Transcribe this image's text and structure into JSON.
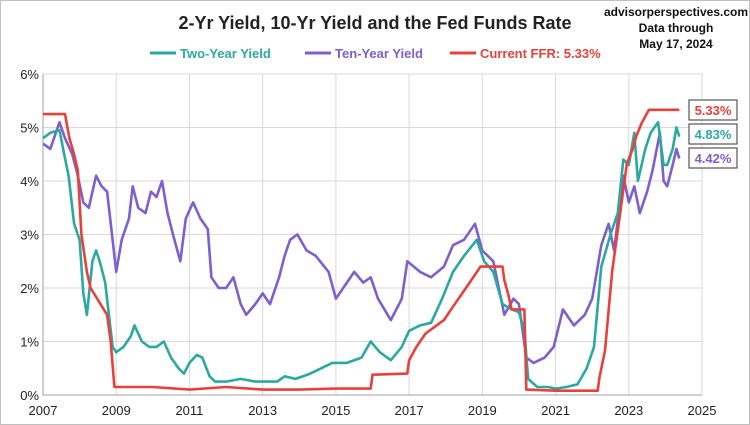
{
  "chart_data": {
    "type": "line",
    "title": "2-Yr Yield, 10-Yr Yield and the Fed Funds Rate",
    "source": "advisorperspectives.com",
    "data_through_line1": "Data through",
    "data_through_line2": "May 17, 2024",
    "xlabel": "",
    "ylabel": "",
    "xlim": [
      2007,
      2025
    ],
    "ylim": [
      0,
      6
    ],
    "x_ticks": [
      "2007",
      "2009",
      "2011",
      "2013",
      "2015",
      "2017",
      "2019",
      "2021",
      "2023",
      "2025"
    ],
    "y_ticks": [
      "0%",
      "1%",
      "2%",
      "3%",
      "4%",
      "5%",
      "6%"
    ],
    "grid": true,
    "legend": "top",
    "colors": {
      "two_year": "#2aa9a1",
      "ten_year": "#7d5fcf",
      "ffr": "#e8413c",
      "axis": "#a0a0a0",
      "grid": "#d9d9d9"
    },
    "series": [
      {
        "name": "Two-Year Yield",
        "key": "two_year",
        "end_label": "4.83%",
        "points": [
          [
            2007.0,
            4.8
          ],
          [
            2007.2,
            4.9
          ],
          [
            2007.45,
            4.95
          ],
          [
            2007.55,
            4.6
          ],
          [
            2007.7,
            4.1
          ],
          [
            2007.85,
            3.2
          ],
          [
            2008.0,
            2.9
          ],
          [
            2008.1,
            1.9
          ],
          [
            2008.2,
            1.5
          ],
          [
            2008.35,
            2.5
          ],
          [
            2008.45,
            2.7
          ],
          [
            2008.55,
            2.5
          ],
          [
            2008.7,
            2.1
          ],
          [
            2008.8,
            1.5
          ],
          [
            2008.9,
            0.9
          ],
          [
            2009.0,
            0.8
          ],
          [
            2009.2,
            0.9
          ],
          [
            2009.4,
            1.1
          ],
          [
            2009.5,
            1.3
          ],
          [
            2009.7,
            1.0
          ],
          [
            2009.9,
            0.9
          ],
          [
            2010.1,
            0.9
          ],
          [
            2010.3,
            1.0
          ],
          [
            2010.5,
            0.7
          ],
          [
            2010.7,
            0.5
          ],
          [
            2010.85,
            0.4
          ],
          [
            2011.0,
            0.6
          ],
          [
            2011.2,
            0.75
          ],
          [
            2011.35,
            0.7
          ],
          [
            2011.55,
            0.35
          ],
          [
            2011.7,
            0.25
          ],
          [
            2012.0,
            0.25
          ],
          [
            2012.4,
            0.3
          ],
          [
            2012.8,
            0.25
          ],
          [
            2013.0,
            0.25
          ],
          [
            2013.4,
            0.25
          ],
          [
            2013.6,
            0.35
          ],
          [
            2013.9,
            0.3
          ],
          [
            2014.3,
            0.4
          ],
          [
            2014.6,
            0.5
          ],
          [
            2014.9,
            0.6
          ],
          [
            2015.3,
            0.6
          ],
          [
            2015.7,
            0.7
          ],
          [
            2015.95,
            1.0
          ],
          [
            2016.2,
            0.8
          ],
          [
            2016.5,
            0.65
          ],
          [
            2016.8,
            0.9
          ],
          [
            2017.0,
            1.2
          ],
          [
            2017.3,
            1.3
          ],
          [
            2017.6,
            1.35
          ],
          [
            2017.9,
            1.8
          ],
          [
            2018.2,
            2.3
          ],
          [
            2018.5,
            2.6
          ],
          [
            2018.85,
            2.9
          ],
          [
            2019.05,
            2.5
          ],
          [
            2019.3,
            2.3
          ],
          [
            2019.55,
            1.7
          ],
          [
            2019.8,
            1.6
          ],
          [
            2020.0,
            1.55
          ],
          [
            2020.15,
            1.2
          ],
          [
            2020.25,
            0.3
          ],
          [
            2020.5,
            0.15
          ],
          [
            2020.8,
            0.15
          ],
          [
            2021.0,
            0.12
          ],
          [
            2021.3,
            0.15
          ],
          [
            2021.6,
            0.2
          ],
          [
            2021.85,
            0.5
          ],
          [
            2022.05,
            0.9
          ],
          [
            2022.25,
            2.4
          ],
          [
            2022.5,
            3.0
          ],
          [
            2022.7,
            3.4
          ],
          [
            2022.85,
            4.4
          ],
          [
            2023.0,
            4.3
          ],
          [
            2023.15,
            4.9
          ],
          [
            2023.25,
            4.0
          ],
          [
            2023.45,
            4.6
          ],
          [
            2023.6,
            4.9
          ],
          [
            2023.8,
            5.1
          ],
          [
            2023.95,
            4.3
          ],
          [
            2024.05,
            4.3
          ],
          [
            2024.2,
            4.6
          ],
          [
            2024.3,
            5.0
          ],
          [
            2024.38,
            4.83
          ]
        ]
      },
      {
        "name": "Ten-Year Yield",
        "key": "ten_year",
        "end_label": "4.42%",
        "points": [
          [
            2007.0,
            4.7
          ],
          [
            2007.2,
            4.6
          ],
          [
            2007.45,
            5.1
          ],
          [
            2007.6,
            4.8
          ],
          [
            2007.8,
            4.5
          ],
          [
            2007.95,
            4.1
          ],
          [
            2008.1,
            3.6
          ],
          [
            2008.25,
            3.5
          ],
          [
            2008.45,
            4.1
          ],
          [
            2008.6,
            3.9
          ],
          [
            2008.75,
            3.8
          ],
          [
            2008.9,
            2.9
          ],
          [
            2009.0,
            2.3
          ],
          [
            2009.15,
            2.9
          ],
          [
            2009.35,
            3.3
          ],
          [
            2009.45,
            3.9
          ],
          [
            2009.6,
            3.5
          ],
          [
            2009.8,
            3.4
          ],
          [
            2009.95,
            3.8
          ],
          [
            2010.1,
            3.7
          ],
          [
            2010.25,
            4.0
          ],
          [
            2010.4,
            3.4
          ],
          [
            2010.55,
            3.0
          ],
          [
            2010.75,
            2.5
          ],
          [
            2010.9,
            3.3
          ],
          [
            2011.1,
            3.6
          ],
          [
            2011.3,
            3.3
          ],
          [
            2011.5,
            3.1
          ],
          [
            2011.6,
            2.2
          ],
          [
            2011.8,
            2.0
          ],
          [
            2012.0,
            2.0
          ],
          [
            2012.2,
            2.2
          ],
          [
            2012.4,
            1.7
          ],
          [
            2012.55,
            1.5
          ],
          [
            2012.8,
            1.7
          ],
          [
            2013.0,
            1.9
          ],
          [
            2013.2,
            1.7
          ],
          [
            2013.45,
            2.2
          ],
          [
            2013.6,
            2.6
          ],
          [
            2013.75,
            2.9
          ],
          [
            2013.95,
            3.0
          ],
          [
            2014.2,
            2.7
          ],
          [
            2014.45,
            2.6
          ],
          [
            2014.8,
            2.3
          ],
          [
            2015.0,
            1.8
          ],
          [
            2015.2,
            2.0
          ],
          [
            2015.5,
            2.3
          ],
          [
            2015.75,
            2.1
          ],
          [
            2015.95,
            2.2
          ],
          [
            2016.15,
            1.8
          ],
          [
            2016.5,
            1.4
          ],
          [
            2016.8,
            1.8
          ],
          [
            2016.95,
            2.5
          ],
          [
            2017.3,
            2.3
          ],
          [
            2017.6,
            2.2
          ],
          [
            2017.95,
            2.4
          ],
          [
            2018.2,
            2.8
          ],
          [
            2018.5,
            2.9
          ],
          [
            2018.8,
            3.2
          ],
          [
            2019.0,
            2.7
          ],
          [
            2019.3,
            2.5
          ],
          [
            2019.6,
            1.5
          ],
          [
            2019.85,
            1.8
          ],
          [
            2020.0,
            1.7
          ],
          [
            2020.2,
            0.7
          ],
          [
            2020.4,
            0.6
          ],
          [
            2020.7,
            0.7
          ],
          [
            2020.95,
            0.9
          ],
          [
            2021.2,
            1.6
          ],
          [
            2021.5,
            1.3
          ],
          [
            2021.8,
            1.5
          ],
          [
            2022.0,
            1.8
          ],
          [
            2022.25,
            2.8
          ],
          [
            2022.45,
            3.2
          ],
          [
            2022.6,
            2.7
          ],
          [
            2022.85,
            4.1
          ],
          [
            2023.0,
            3.6
          ],
          [
            2023.15,
            3.9
          ],
          [
            2023.3,
            3.4
          ],
          [
            2023.5,
            3.8
          ],
          [
            2023.65,
            4.2
          ],
          [
            2023.85,
            4.9
          ],
          [
            2023.95,
            4.0
          ],
          [
            2024.05,
            3.9
          ],
          [
            2024.2,
            4.3
          ],
          [
            2024.3,
            4.6
          ],
          [
            2024.38,
            4.42
          ]
        ]
      },
      {
        "name": "Current FFR: 5.33%",
        "key": "ffr",
        "end_label": "5.33%",
        "points": [
          [
            2007.0,
            5.25
          ],
          [
            2007.6,
            5.25
          ],
          [
            2007.72,
            4.8
          ],
          [
            2007.85,
            4.5
          ],
          [
            2007.95,
            4.2
          ],
          [
            2008.05,
            3.0
          ],
          [
            2008.2,
            2.3
          ],
          [
            2008.3,
            2.0
          ],
          [
            2008.75,
            1.5
          ],
          [
            2008.85,
            1.0
          ],
          [
            2008.95,
            0.15
          ],
          [
            2009.0,
            0.15
          ],
          [
            2010.0,
            0.15
          ],
          [
            2011.0,
            0.1
          ],
          [
            2012.0,
            0.15
          ],
          [
            2013.0,
            0.1
          ],
          [
            2014.0,
            0.1
          ],
          [
            2015.0,
            0.12
          ],
          [
            2015.95,
            0.12
          ],
          [
            2016.0,
            0.38
          ],
          [
            2016.95,
            0.4
          ],
          [
            2017.0,
            0.65
          ],
          [
            2017.2,
            0.9
          ],
          [
            2017.45,
            1.15
          ],
          [
            2017.95,
            1.4
          ],
          [
            2018.2,
            1.65
          ],
          [
            2018.45,
            1.9
          ],
          [
            2018.7,
            2.15
          ],
          [
            2018.95,
            2.4
          ],
          [
            2019.55,
            2.4
          ],
          [
            2019.6,
            2.15
          ],
          [
            2019.7,
            1.9
          ],
          [
            2019.8,
            1.6
          ],
          [
            2020.15,
            1.6
          ],
          [
            2020.2,
            0.1
          ],
          [
            2021.0,
            0.08
          ],
          [
            2022.15,
            0.08
          ],
          [
            2022.2,
            0.33
          ],
          [
            2022.35,
            0.83
          ],
          [
            2022.45,
            1.58
          ],
          [
            2022.55,
            2.33
          ],
          [
            2022.7,
            3.08
          ],
          [
            2022.85,
            3.83
          ],
          [
            2022.95,
            4.33
          ],
          [
            2023.1,
            4.58
          ],
          [
            2023.2,
            4.83
          ],
          [
            2023.35,
            5.08
          ],
          [
            2023.55,
            5.33
          ],
          [
            2024.38,
            5.33
          ]
        ]
      }
    ]
  }
}
